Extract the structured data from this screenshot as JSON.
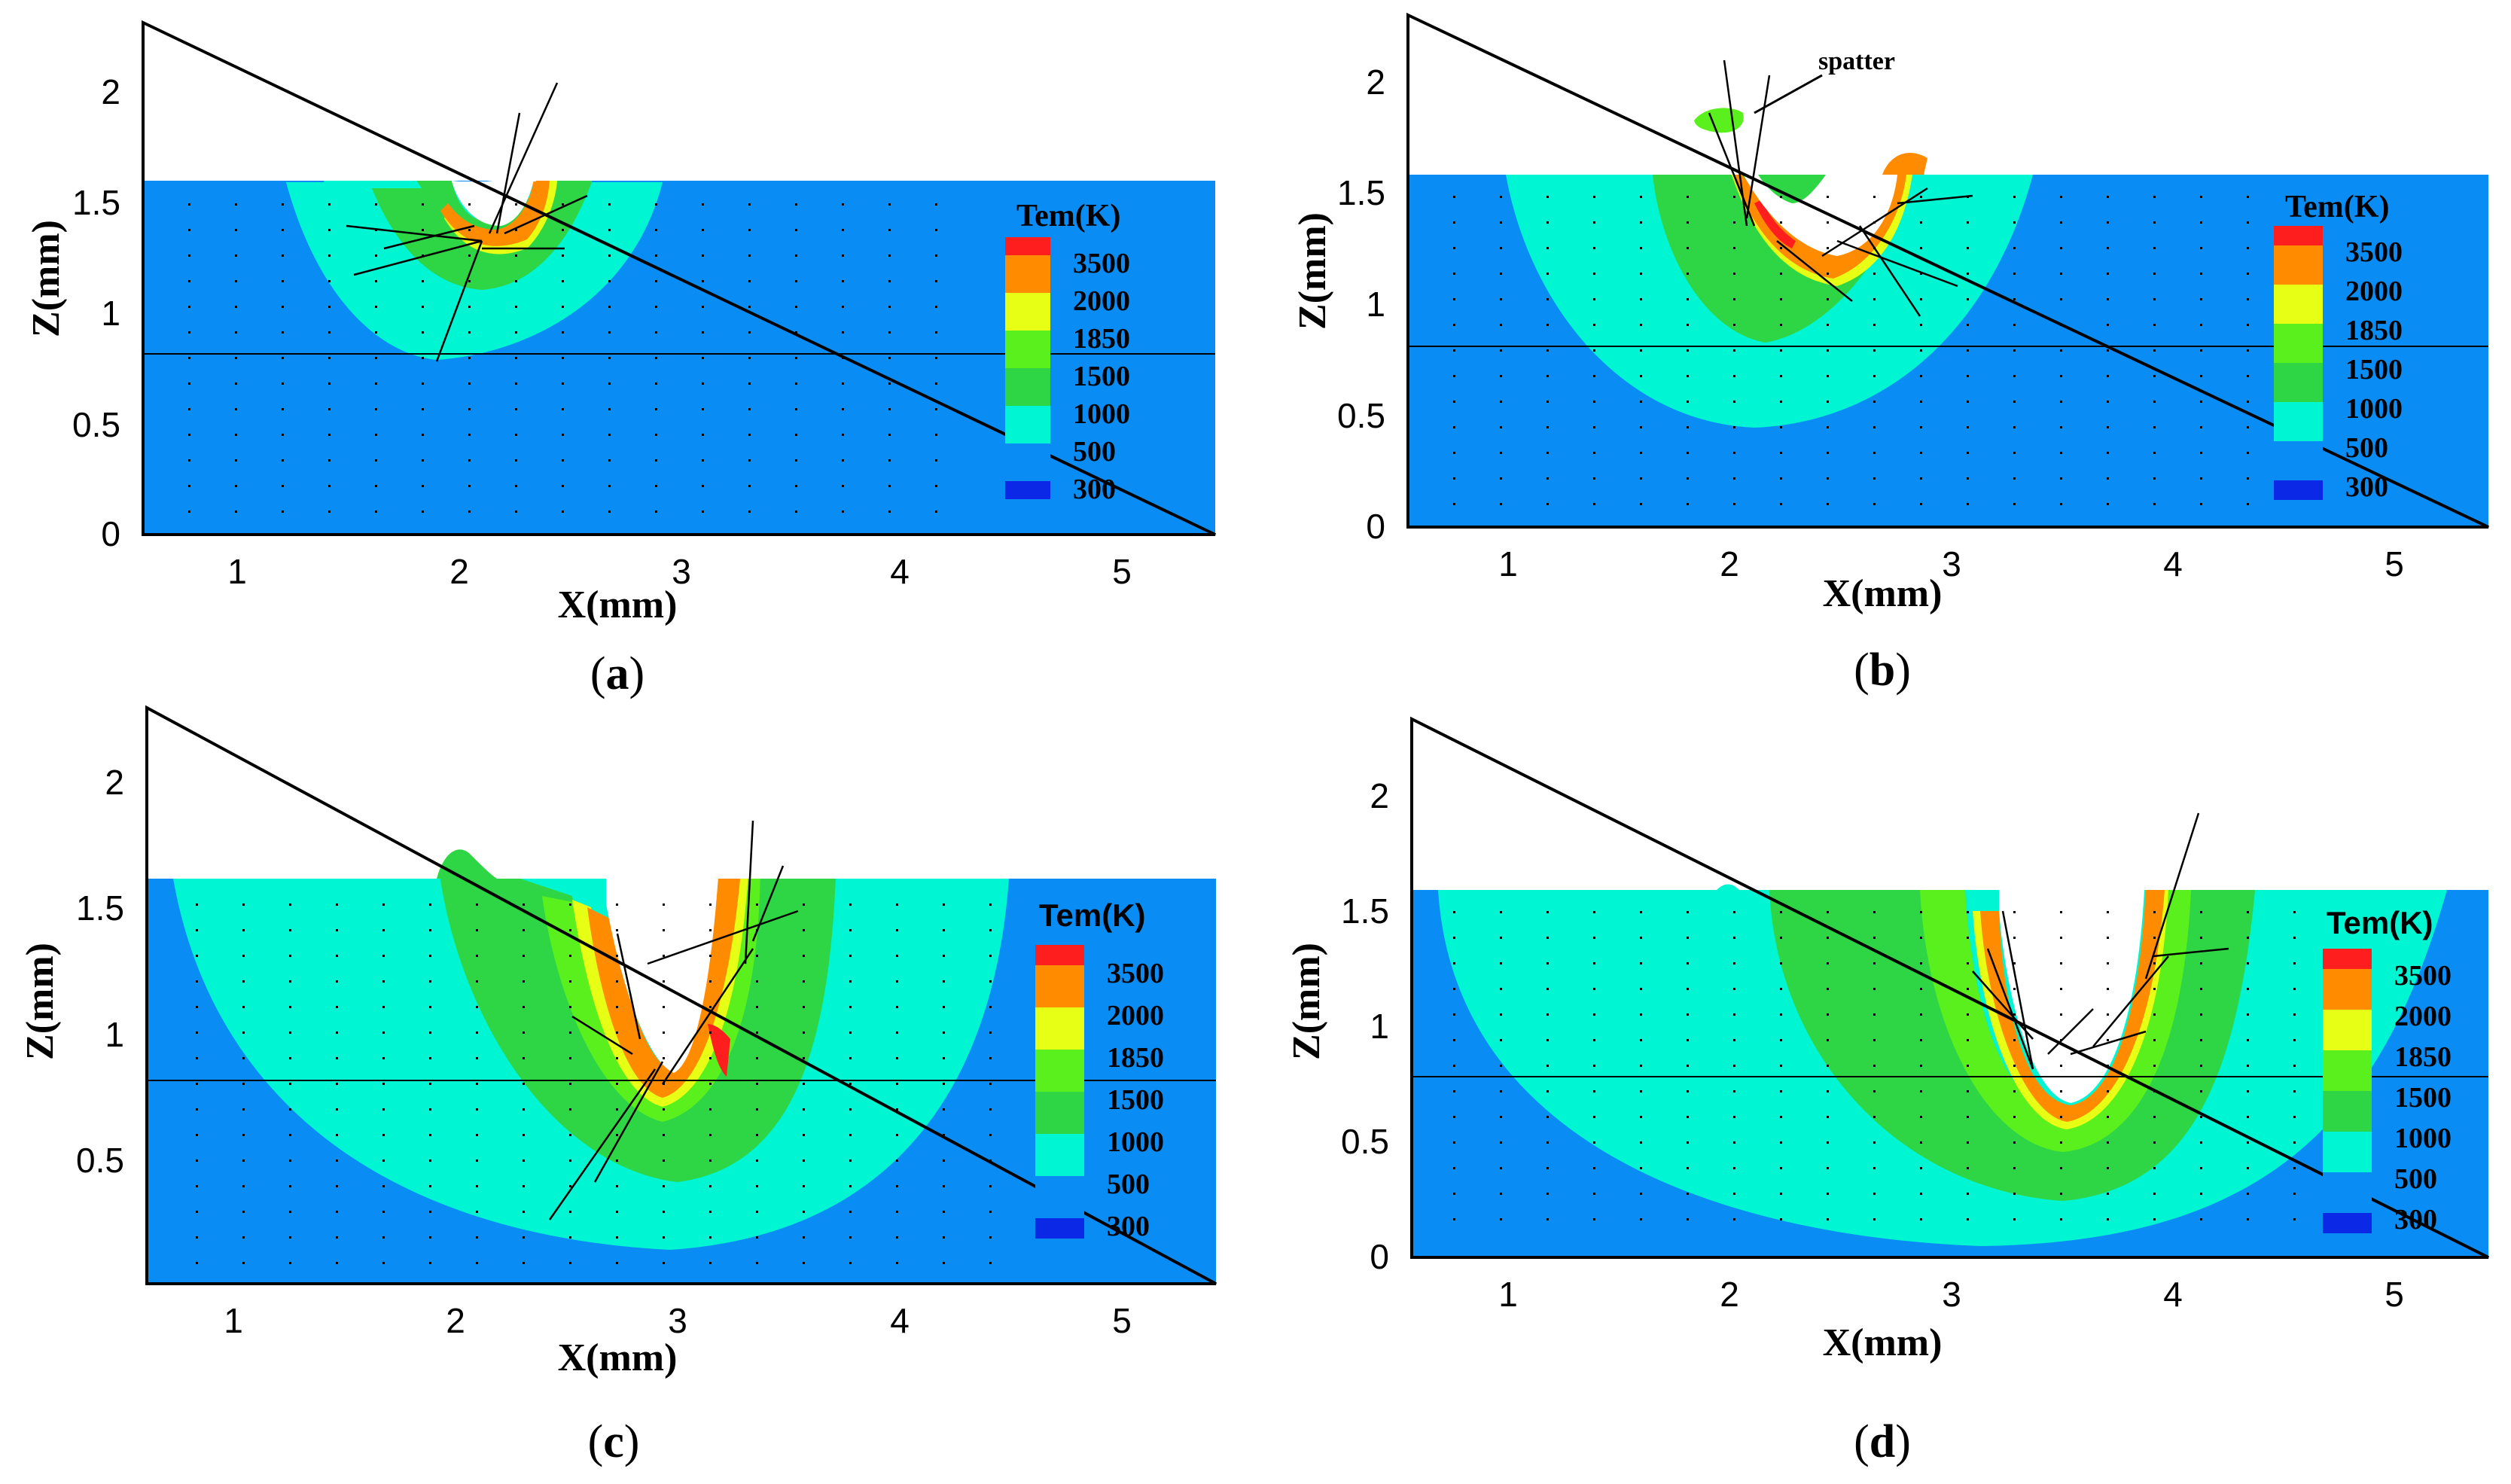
{
  "figure": {
    "colors": {
      "c300": "#0a28e6",
      "c500": "#0a8cf5",
      "c1000": "#00f5d2",
      "c1500": "#2ed646",
      "c1850": "#5af01e",
      "c2000": "#e6ff14",
      "c3500": "#ff8c00",
      "cmax": "#ff1e1e"
    }
  },
  "chart_data": [
    {
      "type": "contour",
      "panel": "a",
      "caption_letter": "a",
      "xlabel": "X(mm)",
      "ylabel": "Z(mm)",
      "xlim": [
        0.6,
        5.4
      ],
      "ylim": [
        0,
        2.3
      ],
      "xticks": [
        "1",
        "2",
        "3",
        "4",
        "5"
      ],
      "yticks": [
        "0",
        "0.5",
        "1",
        "1.5",
        "2"
      ],
      "surface_z": 1.6,
      "reference_line_z": 0.8,
      "legend": {
        "title": "Tem(K)",
        "levels": [
          "3500",
          "2000",
          "1850",
          "1500",
          "1000",
          "500",
          "300"
        ]
      },
      "melt_pool": {
        "x_left": 1.2,
        "x_right": 2.95,
        "depth_z": 0.8
      },
      "keyhole": {
        "x_left": 1.95,
        "x_right": 2.5,
        "bottom_z": 1.25
      },
      "annotation": ""
    },
    {
      "type": "contour",
      "panel": "b",
      "caption_letter": "b",
      "xlabel": "X(mm)",
      "ylabel": "Z(mm)",
      "xlim": [
        0.6,
        5.4
      ],
      "ylim": [
        0,
        2.3
      ],
      "xticks": [
        "1",
        "2",
        "3",
        "4",
        "5"
      ],
      "yticks": [
        "0",
        "0.5",
        "1",
        "1.5",
        "2"
      ],
      "surface_z": 1.6,
      "reference_line_z": 0.8,
      "legend": {
        "title": "Tem(K)",
        "levels": [
          "3500",
          "2000",
          "1850",
          "1500",
          "1000",
          "500",
          "300"
        ]
      },
      "melt_pool": {
        "x_left": 1.0,
        "x_right": 3.4,
        "depth_z": 0.45
      },
      "keyhole": {
        "x_left": 2.0,
        "x_right": 2.9,
        "bottom_z": 1.05
      },
      "annotation": "spatter"
    },
    {
      "type": "contour",
      "panel": "c",
      "caption_letter": "c",
      "xlabel": "X(mm)",
      "ylabel": "Z(mm)",
      "xlim": [
        0.6,
        5.4
      ],
      "ylim": [
        0,
        2.3
      ],
      "xticks": [
        "1",
        "2",
        "3",
        "4",
        "5"
      ],
      "yticks": [
        "0.5",
        "1",
        "1.5",
        "2"
      ],
      "surface_z": 1.62,
      "reference_line_z": 0.8,
      "legend": {
        "title": "Tem(K)",
        "levels": [
          "3500",
          "2000",
          "1850",
          "1500",
          "1000",
          "500",
          "300"
        ]
      },
      "melt_pool": {
        "x_left": 0.72,
        "x_right": 4.55,
        "depth_z": 0.12
      },
      "keyhole": {
        "x_left": 2.6,
        "x_right": 3.4,
        "bottom_z": 0.75
      },
      "annotation": ""
    },
    {
      "type": "contour",
      "panel": "d",
      "caption_letter": "d",
      "xlabel": "X(mm)",
      "ylabel": "Z(mm)",
      "xlim": [
        0.6,
        5.4
      ],
      "ylim": [
        0,
        2.3
      ],
      "xticks": [
        "1",
        "2",
        "3",
        "4",
        "5"
      ],
      "yticks": [
        "0",
        "0.5",
        "1",
        "1.5",
        "2"
      ],
      "surface_z": 1.62,
      "reference_line_z": 0.8,
      "legend": {
        "title": "Tem(K)",
        "levels": [
          "3500",
          "2000",
          "1850",
          "1500",
          "1000",
          "500",
          "300"
        ]
      },
      "melt_pool": {
        "x_left": 0.72,
        "x_right": 5.2,
        "depth_z": 0.07
      },
      "keyhole": {
        "x_left": 3.15,
        "x_right": 4.0,
        "bottom_z": 0.68
      },
      "annotation": ""
    }
  ]
}
